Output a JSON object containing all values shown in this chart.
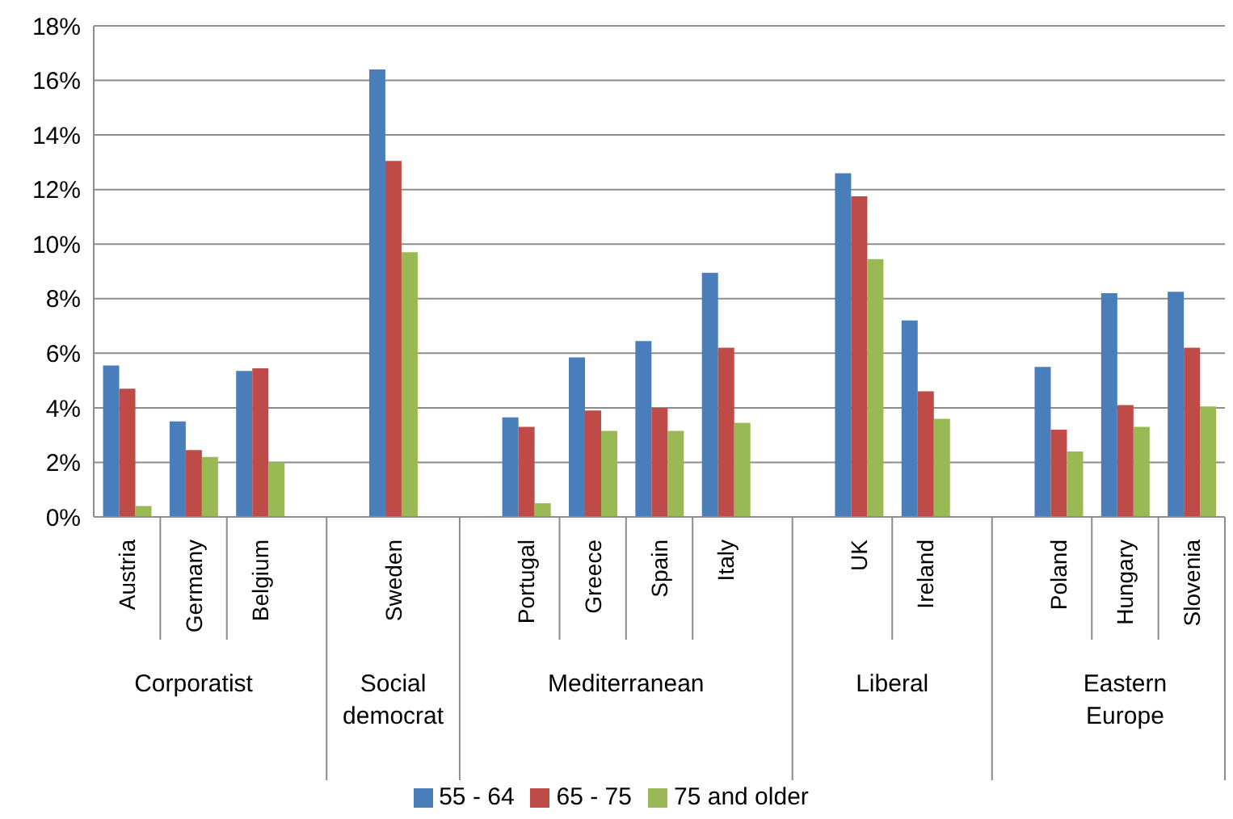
{
  "chart_data": {
    "type": "bar",
    "categories": [
      "Austria",
      "Germany",
      "Belgium",
      null,
      "Sweden",
      null,
      "Portugal",
      "Greece",
      "Spain",
      "Italy",
      null,
      "UK",
      "Ireland",
      null,
      "Poland",
      "Hungary",
      "Slovenia"
    ],
    "series": [
      {
        "name": "55 - 64",
        "color": "#4a7ebb",
        "values": [
          5.55,
          3.5,
          5.35,
          null,
          16.4,
          null,
          3.65,
          5.85,
          6.45,
          8.95,
          null,
          12.6,
          7.2,
          null,
          5.5,
          8.2,
          8.25
        ]
      },
      {
        "name": "65 - 75",
        "color": "#be4b48",
        "values": [
          4.7,
          2.45,
          5.45,
          null,
          13.05,
          null,
          3.3,
          3.9,
          4.0,
          6.2,
          null,
          11.75,
          4.6,
          null,
          3.2,
          4.1,
          6.2
        ]
      },
      {
        "name": "75 and older",
        "color": "#98b954",
        "values": [
          0.4,
          2.2,
          2.0,
          null,
          9.7,
          null,
          0.5,
          3.15,
          3.15,
          3.45,
          null,
          9.45,
          3.6,
          null,
          2.4,
          3.3,
          4.05
        ]
      }
    ],
    "annotations": [
      "Corporatist",
      "Social democrat",
      "Mediterranean",
      "Liberal",
      "Eastern Europe"
    ],
    "ylim": [
      0,
      18
    ],
    "yticks": [
      {
        "value": 0,
        "label": "0%"
      },
      {
        "value": 2,
        "label": "2%"
      },
      {
        "value": 4,
        "label": "4%"
      },
      {
        "value": 6,
        "label": "6%"
      },
      {
        "value": 8,
        "label": "8%"
      },
      {
        "value": 10,
        "label": "10%"
      },
      {
        "value": 12,
        "label": "12%"
      },
      {
        "value": 14,
        "label": "14%"
      },
      {
        "value": 16,
        "label": "16%"
      },
      {
        "value": 18,
        "label": "18%"
      }
    ],
    "grid": "y",
    "legend": "bottom"
  }
}
